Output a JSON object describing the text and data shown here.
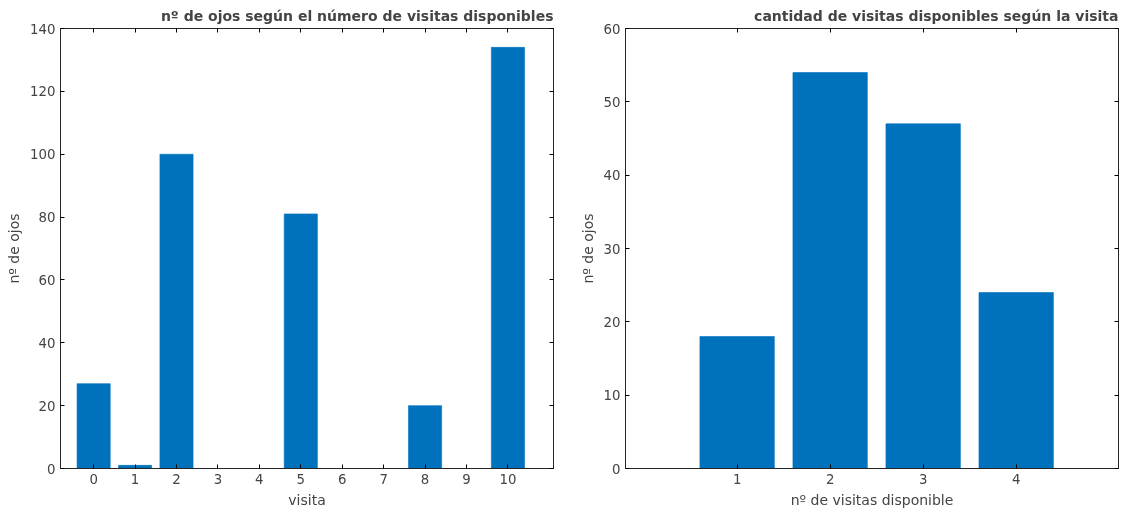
{
  "chart_data": [
    {
      "type": "bar",
      "title": "nº de ojos según el número de visitas disponibles",
      "xlabel": "visita",
      "ylabel": "nº de ojos",
      "x": [
        0,
        1,
        2,
        3,
        4,
        5,
        6,
        7,
        8,
        9,
        10
      ],
      "values": [
        27,
        1,
        100,
        0,
        0,
        81,
        0,
        0,
        20,
        0,
        134
      ],
      "color": "#0072bd",
      "xlim": [
        -0.8,
        11.1
      ],
      "ylim": [
        0,
        140
      ],
      "xticks": [
        0,
        1,
        2,
        3,
        4,
        5,
        6,
        7,
        8,
        9,
        10
      ],
      "yticks": [
        0,
        20,
        40,
        60,
        80,
        100,
        120,
        140
      ]
    },
    {
      "type": "bar",
      "title": "cantidad de visitas disponibles según la visita",
      "xlabel": "nº de visitas disponible",
      "ylabel": "nº de ojos",
      "x": [
        1,
        2,
        3,
        4
      ],
      "values": [
        18,
        54,
        47,
        24
      ],
      "color": "#0072bd",
      "xlim": [
        -0.2,
        5.1
      ],
      "ylim": [
        0,
        60
      ],
      "xticks": [
        1,
        2,
        3,
        4
      ],
      "yticks": [
        0,
        10,
        20,
        30,
        40,
        50,
        60
      ]
    }
  ]
}
